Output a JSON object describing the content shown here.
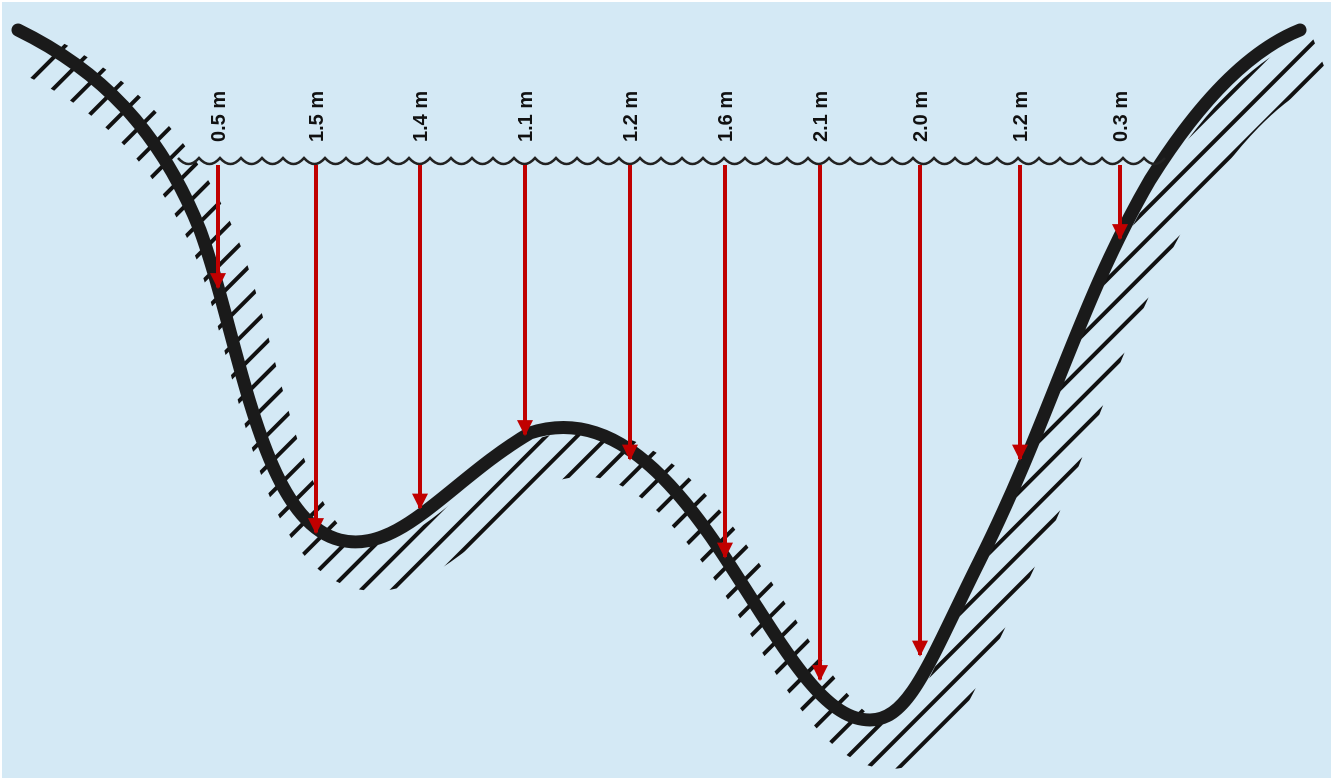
{
  "measurements": [
    {
      "value": 0.5,
      "label": "0.5 m"
    },
    {
      "value": 1.5,
      "label": "1.5 m"
    },
    {
      "value": 1.4,
      "label": "1.4 m"
    },
    {
      "value": 1.1,
      "label": "1.1 m"
    },
    {
      "value": 1.2,
      "label": "1.2 m"
    },
    {
      "value": 1.6,
      "label": "1.6 m"
    },
    {
      "value": 2.1,
      "label": "2.1 m"
    },
    {
      "value": 2.0,
      "label": "2.0 m"
    },
    {
      "value": 1.2,
      "label": "1.2 m"
    },
    {
      "value": 0.3,
      "label": "0.3 m"
    }
  ]
}
